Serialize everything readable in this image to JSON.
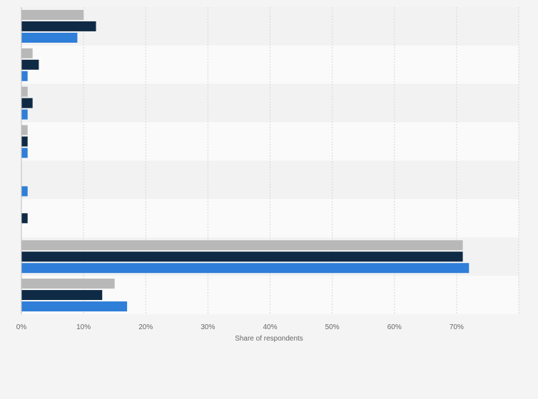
{
  "chart_data": {
    "type": "bar",
    "orientation": "horizontal",
    "categories": [
      "",
      "",
      "",
      "",
      "",
      "",
      "",
      ""
    ],
    "series": [
      {
        "color": "#b8b8b8",
        "values": [
          10,
          1.8,
          1,
          1,
          0,
          0,
          71,
          15
        ]
      },
      {
        "color": "#0f2a44",
        "values": [
          12,
          2.8,
          1.8,
          1,
          0,
          1,
          71,
          13
        ]
      },
      {
        "color": "#2f7ed8",
        "values": [
          9,
          1,
          1,
          1,
          1,
          0,
          72,
          17
        ]
      }
    ],
    "xlim": [
      0,
      80
    ],
    "x_ticks": [
      "0%",
      "10%",
      "20%",
      "30%",
      "40%",
      "50%",
      "60%",
      "70%"
    ],
    "xlabel": "Share of respondents",
    "grid": true
  }
}
